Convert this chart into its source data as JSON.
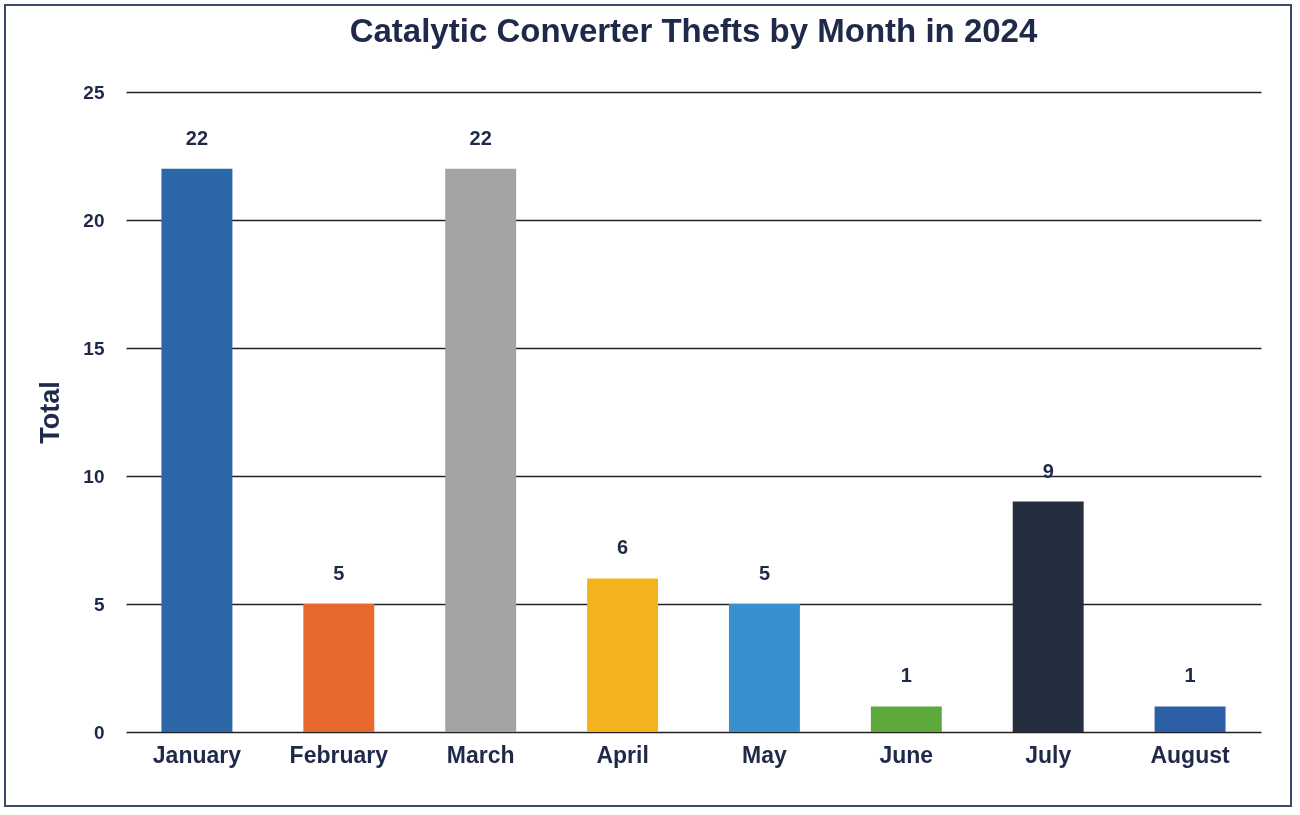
{
  "chart_data": {
    "type": "bar",
    "title": "Catalytic Converter Thefts by Month in 2024",
    "ylabel": "Total",
    "categories": [
      "January",
      "February",
      "March",
      "April",
      "May",
      "June",
      "July",
      "August"
    ],
    "values": [
      22,
      5,
      22,
      6,
      5,
      1,
      9,
      1
    ],
    "colors": [
      "#2b67a9",
      "#e7692e",
      "#a3a3a3",
      "#f3b31f",
      "#3a8fcf",
      "#5ea93c",
      "#242e3f",
      "#2c5fa6"
    ],
    "ylim": [
      0,
      25
    ],
    "yticks": [
      0,
      5,
      10,
      15,
      20,
      25
    ],
    "grid": "y",
    "data_labels": true
  }
}
